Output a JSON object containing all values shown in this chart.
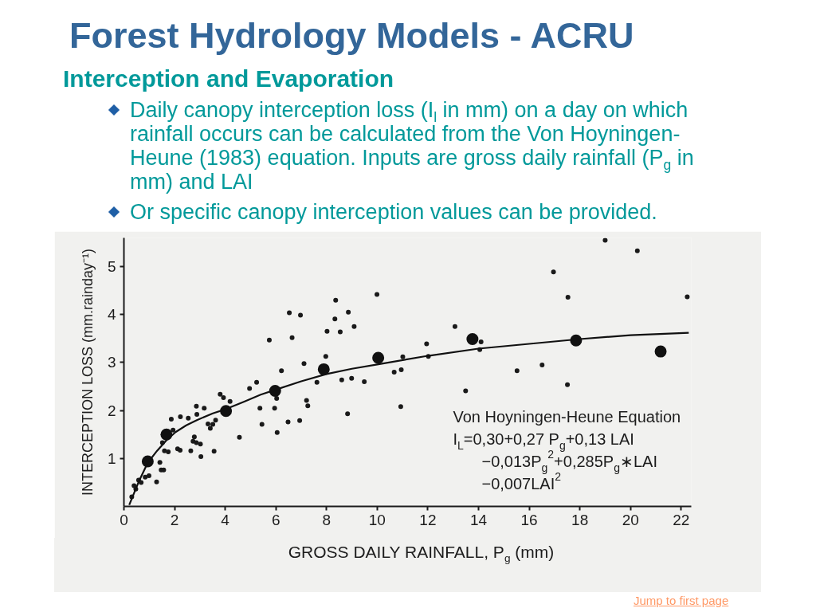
{
  "chart_data": {
    "type": "scatter",
    "title": "Forest Hydrology Models - ACRU",
    "subtitle": "Interception and Evaporation",
    "annotations": [
      "Daily canopy interception loss (I$_{l}$ in mm) on a day on which rainfall occurs can be calculated from the Von Hoyningen-Heune (1983) equation. Inputs are gross daily rainfall (P$_{g}$ in mm) and LAI",
      "Or specific canopy interception values can be provided.",
      "Von Hoyningen-Heune Equation",
      "I$_{L}$=0,30+0,27 P$_{g}$+0,13 LAI",
      "−0,013P$_{g}$$^{2}$+0,285P$_{g}$∗LAI",
      "−0,007LAI$^{2}$",
      "Jump to first page"
    ],
    "xlabel": "GROSS DAILY RAINFALL, P$_{g}$ (mm)",
    "ylabel": "INTERCEPTION LOSS (mm.rainday⁻¹)",
    "xlim": [
      0,
      22.4
    ],
    "ylim": [
      0,
      5.6
    ],
    "xticks": [
      0,
      2,
      4,
      6,
      8,
      10,
      12,
      14,
      16,
      18,
      20,
      22
    ],
    "yticks": [
      1,
      2,
      3,
      4,
      5
    ],
    "series": [
      {
        "marker": "circle",
        "color": "#1a1a1a",
        "x": [
          9.99,
          8.36,
          6.53,
          6.97,
          8.86,
          8.33,
          9.09,
          8.02,
          8.54,
          5.74,
          6.64,
          7.97,
          11.01,
          7.11,
          6.22,
          10.95,
          10.67,
          5.24,
          4.96,
          7.62,
          8.6,
          8.99,
          9.49,
          4.19,
          3.8,
          3.93,
          6.03,
          7.21,
          7.26,
          5.37,
          5.95,
          10.93,
          3.17,
          2.86,
          2.88,
          2.54,
          2.23,
          1.87,
          1.94,
          3.62,
          3.32,
          3.51,
          3.41,
          6.48,
          6.94,
          5.45,
          8.83,
          6.05,
          4.56,
          2.78,
          2.73,
          2.86,
          3.02,
          3.04,
          2.64,
          2.12,
          2.22,
          3.56,
          1.75,
          1.52,
          1.6,
          1.47,
          1.57,
          1.42,
          0.99,
          1.29,
          0.58,
          0.4,
          0.47,
          0.31,
          0.68,
          0.84,
          19.0,
          20.27,
          16.96,
          17.53,
          22.24,
          13.07,
          11.95,
          14.1,
          12.02,
          14.05,
          16.51,
          15.52,
          17.51,
          13.49
        ],
        "values": [
          4.42,
          4.3,
          4.04,
          3.99,
          4.05,
          3.91,
          3.75,
          3.65,
          3.64,
          3.47,
          3.52,
          3.13,
          3.12,
          2.98,
          2.83,
          2.85,
          2.8,
          2.59,
          2.46,
          2.59,
          2.64,
          2.67,
          2.6,
          2.19,
          2.34,
          2.27,
          2.25,
          2.21,
          2.1,
          2.05,
          2.05,
          2.08,
          2.05,
          2.09,
          1.92,
          1.84,
          1.87,
          1.82,
          1.59,
          1.8,
          1.72,
          1.71,
          1.63,
          1.76,
          1.79,
          1.71,
          1.93,
          1.54,
          1.44,
          1.45,
          1.36,
          1.33,
          1.3,
          1.04,
          1.16,
          1.2,
          1.17,
          1.15,
          1.14,
          1.33,
          1.16,
          0.76,
          0.76,
          0.92,
          0.64,
          0.51,
          0.55,
          0.43,
          0.36,
          0.2,
          0.5,
          0.61,
          5.55,
          5.33,
          4.89,
          4.36,
          4.37,
          3.75,
          3.39,
          3.43,
          3.13,
          3.27,
          2.95,
          2.83,
          2.54,
          2.41
        ]
      },
      {
        "marker": "circle",
        "color": "#111111",
        "x": [
          0.94,
          1.68,
          4.03,
          5.97,
          7.89,
          10.04,
          13.76,
          17.85,
          21.19
        ],
        "values": [
          0.94,
          1.5,
          1.99,
          2.41,
          2.86,
          3.1,
          3.49,
          3.46,
          3.23
        ]
      },
      {
        "type": "line",
        "color": "#111111",
        "x": [
          0.21,
          0.58,
          0.94,
          1.31,
          1.68,
          2.04,
          2.46,
          2.88,
          3.51,
          4.03,
          4.77,
          5.4,
          6.03,
          7.0,
          8.0,
          9.0,
          10.0,
          12.0,
          14.0,
          16.0,
          18.0,
          20.0,
          22.3
        ],
        "values": [
          0.03,
          0.51,
          0.91,
          1.16,
          1.38,
          1.55,
          1.69,
          1.8,
          1.94,
          2.03,
          2.19,
          2.33,
          2.44,
          2.61,
          2.76,
          2.87,
          2.96,
          3.14,
          3.29,
          3.39,
          3.49,
          3.57,
          3.62
        ]
      }
    ]
  }
}
